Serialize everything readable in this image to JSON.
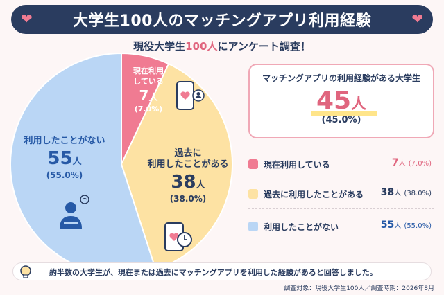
{
  "header": {
    "title": "大学生100人のマッチングアプリ利用経験",
    "subtitle_pre": "現役大学生",
    "subtitle_highlight": "100人",
    "subtitle_post": "にアンケート調査！"
  },
  "chart_data": {
    "type": "pie",
    "unit": "人",
    "slices": [
      {
        "label": "現在利用している",
        "label_lines": [
          "現在利用",
          "している"
        ],
        "value": 7,
        "percent": "(7.0%)",
        "color": "#f07b92"
      },
      {
        "label": "過去に利用したことがある",
        "label_lines": [
          "過去に",
          "利用したことがある"
        ],
        "value": 38,
        "percent": "(38.0%)",
        "color": "#fde2a3"
      },
      {
        "label": "利用したことがない",
        "label_lines": [
          "利用したことがない"
        ],
        "value": 55,
        "percent": "(55.0%)",
        "color": "#bad6f5"
      }
    ],
    "legend_position": "right"
  },
  "callout": {
    "title": "マッチングアプリの利用経験がある大学生",
    "value": "45",
    "unit": "人",
    "percent": "(45.0%)"
  },
  "legend": [
    {
      "label": "現在利用している",
      "value": "7",
      "unit": "人",
      "percent": "(7.0%)",
      "color": "#f07b92",
      "value_color": "#e0657e"
    },
    {
      "label": "過去に利用したことがある",
      "value": "38",
      "unit": "人",
      "percent": "(38.0%)",
      "color": "#fde2a3",
      "value_color": "#2a3c5f"
    },
    {
      "label": "利用したことがない",
      "value": "55",
      "unit": "人",
      "percent": "(55.0%)",
      "color": "#bad6f5",
      "value_color": "#2659a6"
    }
  ],
  "note": "約半数の大学生が、現在または過去にマッチングアプリを利用した経験があると回答しました。",
  "footer": "調査対象：現役大学生100人／調査時期：2026年8月",
  "icons": [
    "heart-icon",
    "phone-heart-icon",
    "phone-clock-icon",
    "thinking-person-icon",
    "lightbulb-icon"
  ]
}
